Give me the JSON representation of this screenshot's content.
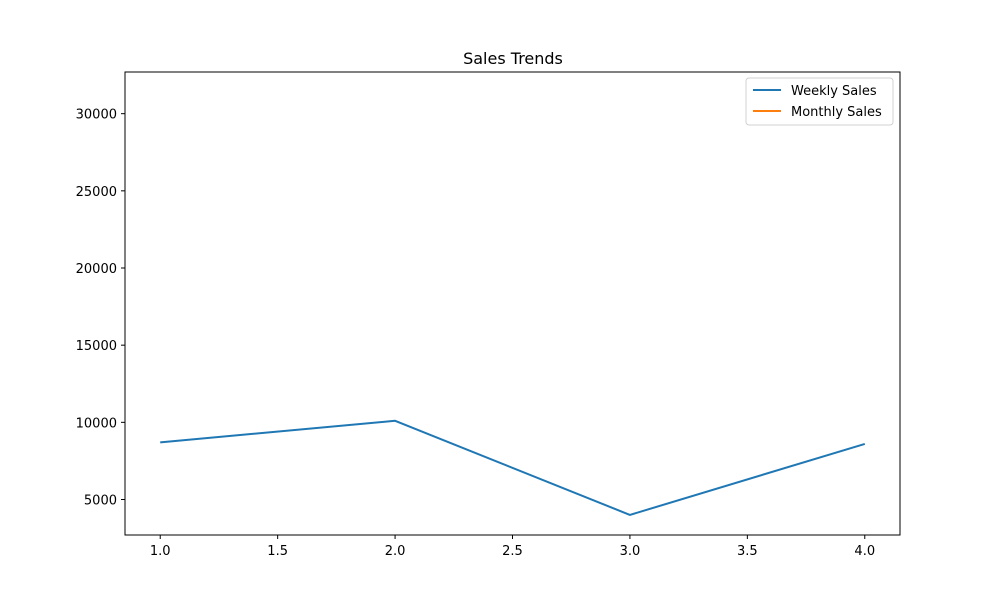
{
  "chart_data": {
    "type": "line",
    "title": "Sales Trends",
    "xlabel": "",
    "ylabel": "",
    "xlim": [
      0.85,
      4.15
    ],
    "ylim": [
      2700,
      32700
    ],
    "xticks": [
      1.0,
      1.5,
      2.0,
      2.5,
      3.0,
      3.5,
      4.0
    ],
    "xtick_labels": [
      "1.0",
      "1.5",
      "2.0",
      "2.5",
      "3.0",
      "3.5",
      "4.0"
    ],
    "yticks": [
      5000,
      10000,
      15000,
      20000,
      25000,
      30000
    ],
    "ytick_labels": [
      "5000",
      "10000",
      "15000",
      "20000",
      "25000",
      "30000"
    ],
    "grid": false,
    "legend_position": "top-right",
    "series": [
      {
        "name": "Weekly Sales",
        "color": "#1f77b4",
        "x": [
          1,
          2,
          3,
          4
        ],
        "y": [
          8700,
          10100,
          4000,
          8600
        ]
      },
      {
        "name": "Monthly Sales",
        "color": "#ff7f0e",
        "x": [],
        "y": []
      }
    ]
  }
}
